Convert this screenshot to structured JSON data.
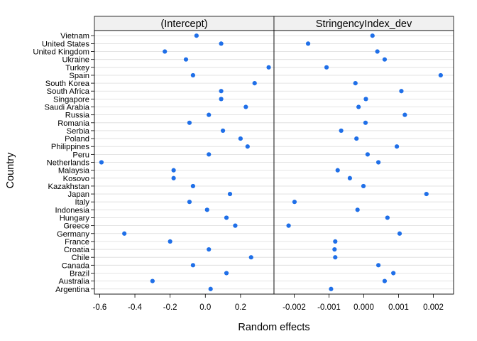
{
  "chart_data": {
    "type": "scatter",
    "subtype": "dotplot-faceted",
    "xlabel": "Random effects",
    "ylabel": "Country",
    "grid": "horizontal",
    "point_color": "#1f6fe8",
    "countries": [
      "Argentina",
      "Australia",
      "Brazil",
      "Canada",
      "Chile",
      "Croatia",
      "France",
      "Germany",
      "Greece",
      "Hungary",
      "Indonesia",
      "Italy",
      "Japan",
      "Kazakhstan",
      "Kosovo",
      "Malaysia",
      "Netherlands",
      "Peru",
      "Philippines",
      "Poland",
      "Serbia",
      "Romania",
      "Russia",
      "Saudi Arabia",
      "Singapore",
      "South Africa",
      "South Korea",
      "Spain",
      "Turkey",
      "Ukraine",
      "United Kingdom",
      "United States",
      "Vietnam"
    ],
    "panels": [
      {
        "name": "(Intercept)",
        "xlim": [
          -0.63,
          0.39
        ],
        "ticks": [
          -0.6,
          -0.4,
          -0.2,
          0.0,
          0.2
        ],
        "tick_labels": [
          "-0.6",
          "-0.4",
          "-0.2",
          "0.0",
          "0.2"
        ],
        "values": [
          0.03,
          -0.3,
          0.12,
          -0.07,
          0.26,
          0.02,
          -0.2,
          -0.46,
          0.17,
          0.12,
          0.01,
          -0.09,
          0.14,
          -0.07,
          -0.18,
          -0.18,
          -0.59,
          0.02,
          0.24,
          0.2,
          0.1,
          -0.09,
          0.02,
          0.23,
          0.09,
          0.09,
          0.28,
          -0.07,
          0.36,
          -0.11,
          -0.23,
          0.09,
          -0.05
        ]
      },
      {
        "name": "StringencyIndex_dev",
        "xlim": [
          -0.00258,
          0.00258
        ],
        "ticks": [
          -0.002,
          -0.001,
          0.0,
          0.001,
          0.002
        ],
        "tick_labels": [
          "-0.002",
          "-0.001",
          "0.000",
          "0.001",
          "0.002"
        ],
        "values": [
          -0.00094,
          0.0006,
          0.00085,
          0.00042,
          -0.00082,
          -0.00084,
          -0.00082,
          0.00103,
          -0.00216,
          0.00068,
          -0.00018,
          -0.00199,
          0.0018,
          -1e-05,
          -0.0004,
          -0.00075,
          0.00042,
          0.00011,
          0.00095,
          -0.00021,
          -0.00065,
          5e-05,
          0.00118,
          -0.00015,
          6e-05,
          0.00108,
          -0.00024,
          0.00221,
          -0.00107,
          0.0006,
          0.00039,
          -0.0016,
          0.00025
        ]
      }
    ]
  }
}
